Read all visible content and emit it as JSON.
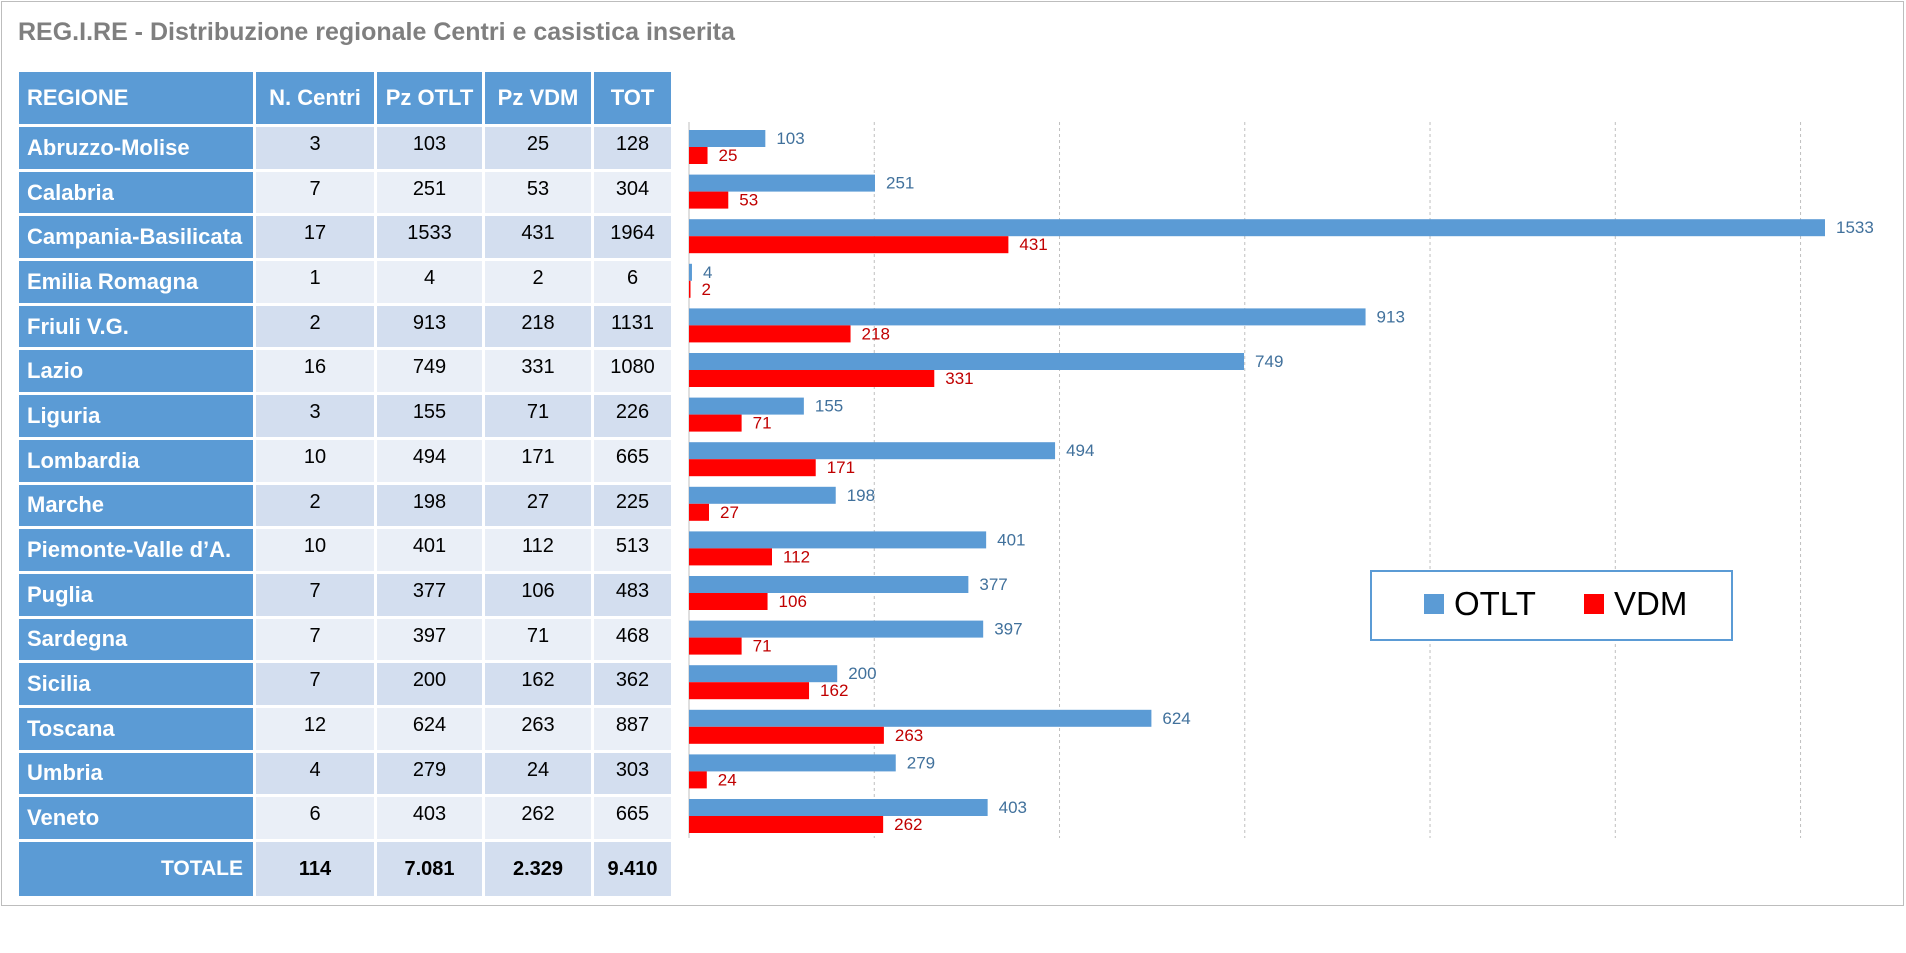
{
  "title": "REG.I.RE - Distribuzione regionale Centri e casistica inserita",
  "table": {
    "headers": [
      "REGIONE",
      "N. Centri",
      "Pz OTLT",
      "Pz VDM",
      "TOT"
    ],
    "rows": [
      [
        "Abruzzo-Molise",
        "3",
        "103",
        "25",
        "128"
      ],
      [
        "Calabria",
        "7",
        "251",
        "53",
        "304"
      ],
      [
        "Campania-Basilicata",
        "17",
        "1533",
        "431",
        "1964"
      ],
      [
        "Emilia Romagna",
        "1",
        "4",
        "2",
        "6"
      ],
      [
        "Friuli V.G.",
        "2",
        "913",
        "218",
        "1131"
      ],
      [
        "Lazio",
        "16",
        "749",
        "331",
        "1080"
      ],
      [
        "Liguria",
        "3",
        "155",
        "71",
        "226"
      ],
      [
        "Lombardia",
        "10",
        "494",
        "171",
        "665"
      ],
      [
        "Marche",
        "2",
        "198",
        "27",
        "225"
      ],
      [
        "Piemonte-Valle d’A.",
        "10",
        "401",
        "112",
        "513"
      ],
      [
        "Puglia",
        "7",
        "377",
        "106",
        "483"
      ],
      [
        "Sardegna",
        "7",
        "397",
        "71",
        "468"
      ],
      [
        "Sicilia",
        "7",
        "200",
        "162",
        "362"
      ],
      [
        "Toscana",
        "12",
        "624",
        "263",
        "887"
      ],
      [
        "Umbria",
        "4",
        "279",
        "24",
        "303"
      ],
      [
        "Veneto",
        "6",
        "403",
        "262",
        "665"
      ]
    ],
    "total": [
      "TOTALE",
      "114",
      "7.081",
      "2.329",
      "9.410"
    ]
  },
  "chart_data": {
    "type": "bar",
    "orientation": "horizontal",
    "categories": [
      "Abruzzo-Molise",
      "Calabria",
      "Campania-Basilicata",
      "Emilia Romagna",
      "Friuli V.G.",
      "Lazio",
      "Liguria",
      "Lombardia",
      "Marche",
      "Piemonte-Valle d’A.",
      "Puglia",
      "Sardegna",
      "Sicilia",
      "Toscana",
      "Umbria",
      "Veneto"
    ],
    "series": [
      {
        "name": "OTLT",
        "color": "#5b9bd5",
        "label_color": "#41719c",
        "values": [
          103,
          251,
          1533,
          4,
          913,
          749,
          155,
          494,
          198,
          401,
          377,
          397,
          200,
          624,
          279,
          403
        ]
      },
      {
        "name": "VDM",
        "color": "#ff0000",
        "label_color": "#c00000",
        "values": [
          25,
          53,
          431,
          2,
          218,
          331,
          71,
          171,
          27,
          112,
          106,
          71,
          162,
          263,
          24,
          262
        ]
      }
    ],
    "xlim": [
      0,
      1600
    ],
    "gridlines": [
      0,
      250,
      500,
      750,
      1000,
      1250,
      1500
    ],
    "grid": true,
    "legend_position": "right"
  }
}
